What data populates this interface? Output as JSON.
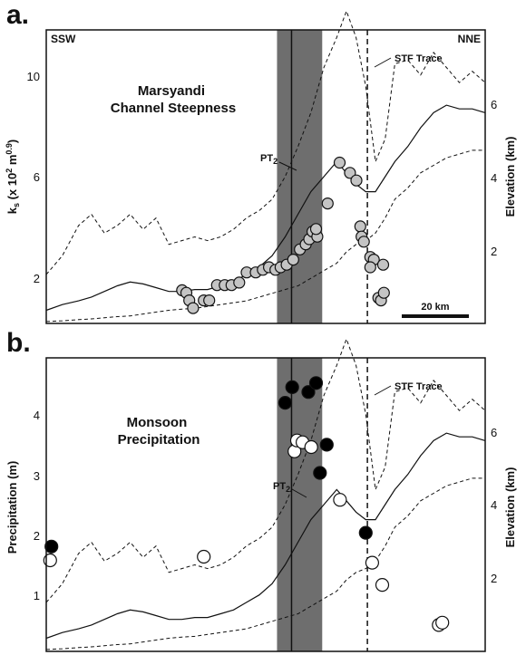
{
  "chart_data": [
    {
      "type": "scatter",
      "panel_label": "a.",
      "title": "Marsyandi\nChannel Steepness",
      "corner_left": "SSW",
      "corner_right": "NNE",
      "ylabel_left": "ks (x 10² m^0.9)",
      "ylabel_right": "Elevation (km)",
      "yticks_left": [
        "2",
        "6",
        "10"
      ],
      "yticks_right": [
        "2",
        "4",
        "6"
      ],
      "ylim_left": [
        0,
        11.5
      ],
      "ylim_right": [
        0,
        7.8
      ],
      "x_units": "km",
      "xlim": [
        0,
        136
      ],
      "scale_bar": "20 km",
      "annotations": {
        "stf": "STF Trace",
        "pt2": "PT",
        "pt2_sub": "2"
      },
      "stf_x": 99.5,
      "pt2_x": 76,
      "pt2_band_x": [
        71.5,
        85.5
      ],
      "series": [
        {
          "kind": "points",
          "fill": "#c4c4c4",
          "x": [
            42.1,
            43.4,
            44.3,
            45.5,
            48.8,
            50.5,
            52.9,
            55.3,
            57.4,
            59.8,
            62.1,
            64.9,
            67.1,
            69.0,
            71.0,
            72.6,
            74.5,
            76.5,
            78.6,
            80.4,
            81.5,
            82.5,
            84.0,
            83.6,
            87.2,
            90.9,
            94.1,
            96.1,
            97.3,
            97.7,
            98.4,
            100.4,
            101.5,
            102.9,
            103.7,
            104.6,
            104.4,
            100.4
          ],
          "y": [
            1.3,
            1.2,
            0.9,
            0.6,
            0.9,
            0.9,
            1.5,
            1.5,
            1.5,
            1.6,
            2.0,
            2.0,
            2.1,
            2.2,
            2.1,
            2.2,
            2.3,
            2.5,
            2.9,
            3.1,
            3.3,
            3.6,
            3.4,
            3.7,
            4.7,
            6.3,
            5.9,
            5.6,
            3.8,
            3.4,
            3.2,
            2.6,
            2.5,
            1.0,
            0.9,
            1.2,
            2.3,
            2.2
          ]
        }
      ],
      "elevation_profiles_km": {
        "x": [
          0,
          5,
          10,
          14,
          18,
          22,
          26,
          30,
          34,
          38,
          42,
          46,
          50,
          54,
          58,
          62,
          66,
          70,
          74,
          78,
          82,
          86,
          90,
          93,
          96,
          99,
          102,
          105,
          108,
          112,
          116,
          120,
          124,
          128,
          132,
          136
        ],
        "max": [
          1.3,
          1.8,
          2.6,
          2.9,
          2.4,
          2.6,
          2.9,
          2.5,
          2.8,
          2.1,
          2.2,
          2.3,
          2.2,
          2.3,
          2.5,
          2.8,
          3.0,
          3.3,
          3.9,
          4.7,
          5.6,
          6.8,
          7.6,
          8.3,
          7.6,
          6.3,
          4.3,
          4.9,
          6.9,
          7.0,
          6.6,
          7.2,
          6.8,
          6.4,
          6.7,
          6.4
        ],
        "mean": [
          0.35,
          0.5,
          0.6,
          0.7,
          0.85,
          1.0,
          1.1,
          1.05,
          0.95,
          0.85,
          0.85,
          0.9,
          0.9,
          1.0,
          1.1,
          1.3,
          1.5,
          1.8,
          2.3,
          2.9,
          3.5,
          3.9,
          4.3,
          4.0,
          3.7,
          3.5,
          3.5,
          3.9,
          4.3,
          4.7,
          5.2,
          5.6,
          5.8,
          5.7,
          5.7,
          5.6
        ],
        "min": [
          0.05,
          0.07,
          0.1,
          0.12,
          0.15,
          0.18,
          0.2,
          0.25,
          0.3,
          0.35,
          0.38,
          0.4,
          0.45,
          0.5,
          0.55,
          0.6,
          0.7,
          0.8,
          0.9,
          1.0,
          1.2,
          1.4,
          1.6,
          1.9,
          2.1,
          2.2,
          2.4,
          2.8,
          3.3,
          3.6,
          4.0,
          4.2,
          4.4,
          4.5,
          4.6,
          4.6
        ]
      }
    },
    {
      "type": "scatter",
      "panel_label": "b.",
      "title": "Monsoon\nPrecipitation",
      "ylabel_left": "Precipitation (m)",
      "ylabel_right": "Elevation (km)",
      "yticks_left": [
        "1",
        "2",
        "3",
        "4"
      ],
      "yticks_right": [
        "2",
        "4",
        "6"
      ],
      "ylim_left": [
        0,
        4.9
      ],
      "ylim_right": [
        0,
        7.8
      ],
      "xlim": [
        0,
        136
      ],
      "annotations": {
        "stf": "STF Trace",
        "pt2": "PT",
        "pt2_sub": "2"
      },
      "stf_x": 99.5,
      "pt2_x": 76,
      "pt2_band_x": [
        71.5,
        85.5
      ],
      "series": [
        {
          "kind": "points",
          "fill": "#000000",
          "x": [
            1.6,
            74.0,
            76.2,
            81.2,
            83.6,
            84.8,
            86.9,
            99.0
          ],
          "y": [
            1.75,
            4.15,
            4.41,
            4.33,
            4.48,
            2.98,
            3.45,
            1.98
          ]
        },
        {
          "kind": "points",
          "fill": "#ffffff",
          "x": [
            1.2,
            48.8,
            76.9,
            77.7,
            79.4,
            82.1,
            91.0,
            101.0,
            104.1,
            121.6,
            122.7
          ],
          "y": [
            1.52,
            1.58,
            3.34,
            3.52,
            3.49,
            3.41,
            2.53,
            1.48,
            1.11,
            0.44,
            0.48
          ]
        }
      ],
      "elevation_profiles_km": {
        "x": [
          0,
          5,
          10,
          14,
          18,
          22,
          26,
          30,
          34,
          38,
          42,
          46,
          50,
          54,
          58,
          62,
          66,
          70,
          74,
          78,
          82,
          86,
          90,
          93,
          96,
          99,
          102,
          105,
          108,
          112,
          116,
          120,
          124,
          128,
          132,
          136
        ],
        "max": [
          1.3,
          1.8,
          2.6,
          2.9,
          2.4,
          2.6,
          2.9,
          2.5,
          2.8,
          2.1,
          2.2,
          2.3,
          2.2,
          2.3,
          2.5,
          2.8,
          3.0,
          3.3,
          3.9,
          4.7,
          5.6,
          6.8,
          7.6,
          8.3,
          7.6,
          6.3,
          4.3,
          4.9,
          6.9,
          7.0,
          6.6,
          7.2,
          6.8,
          6.4,
          6.7,
          6.4
        ],
        "mean": [
          0.35,
          0.5,
          0.6,
          0.7,
          0.85,
          1.0,
          1.1,
          1.05,
          0.95,
          0.85,
          0.85,
          0.9,
          0.9,
          1.0,
          1.1,
          1.3,
          1.5,
          1.8,
          2.3,
          2.9,
          3.5,
          3.9,
          4.3,
          4.0,
          3.7,
          3.5,
          3.5,
          3.9,
          4.3,
          4.7,
          5.2,
          5.6,
          5.8,
          5.7,
          5.7,
          5.6
        ],
        "min": [
          0.05,
          0.07,
          0.1,
          0.12,
          0.15,
          0.18,
          0.2,
          0.25,
          0.3,
          0.35,
          0.38,
          0.4,
          0.45,
          0.5,
          0.55,
          0.6,
          0.7,
          0.8,
          0.9,
          1.0,
          1.2,
          1.4,
          1.6,
          1.9,
          2.1,
          2.2,
          2.4,
          2.8,
          3.3,
          3.6,
          4.0,
          4.2,
          4.4,
          4.5,
          4.6,
          4.6
        ]
      }
    }
  ],
  "colors": {
    "pt2_band": "#6e6e6e",
    "axis": "#111111",
    "gray_points": "#c4c4c4"
  }
}
